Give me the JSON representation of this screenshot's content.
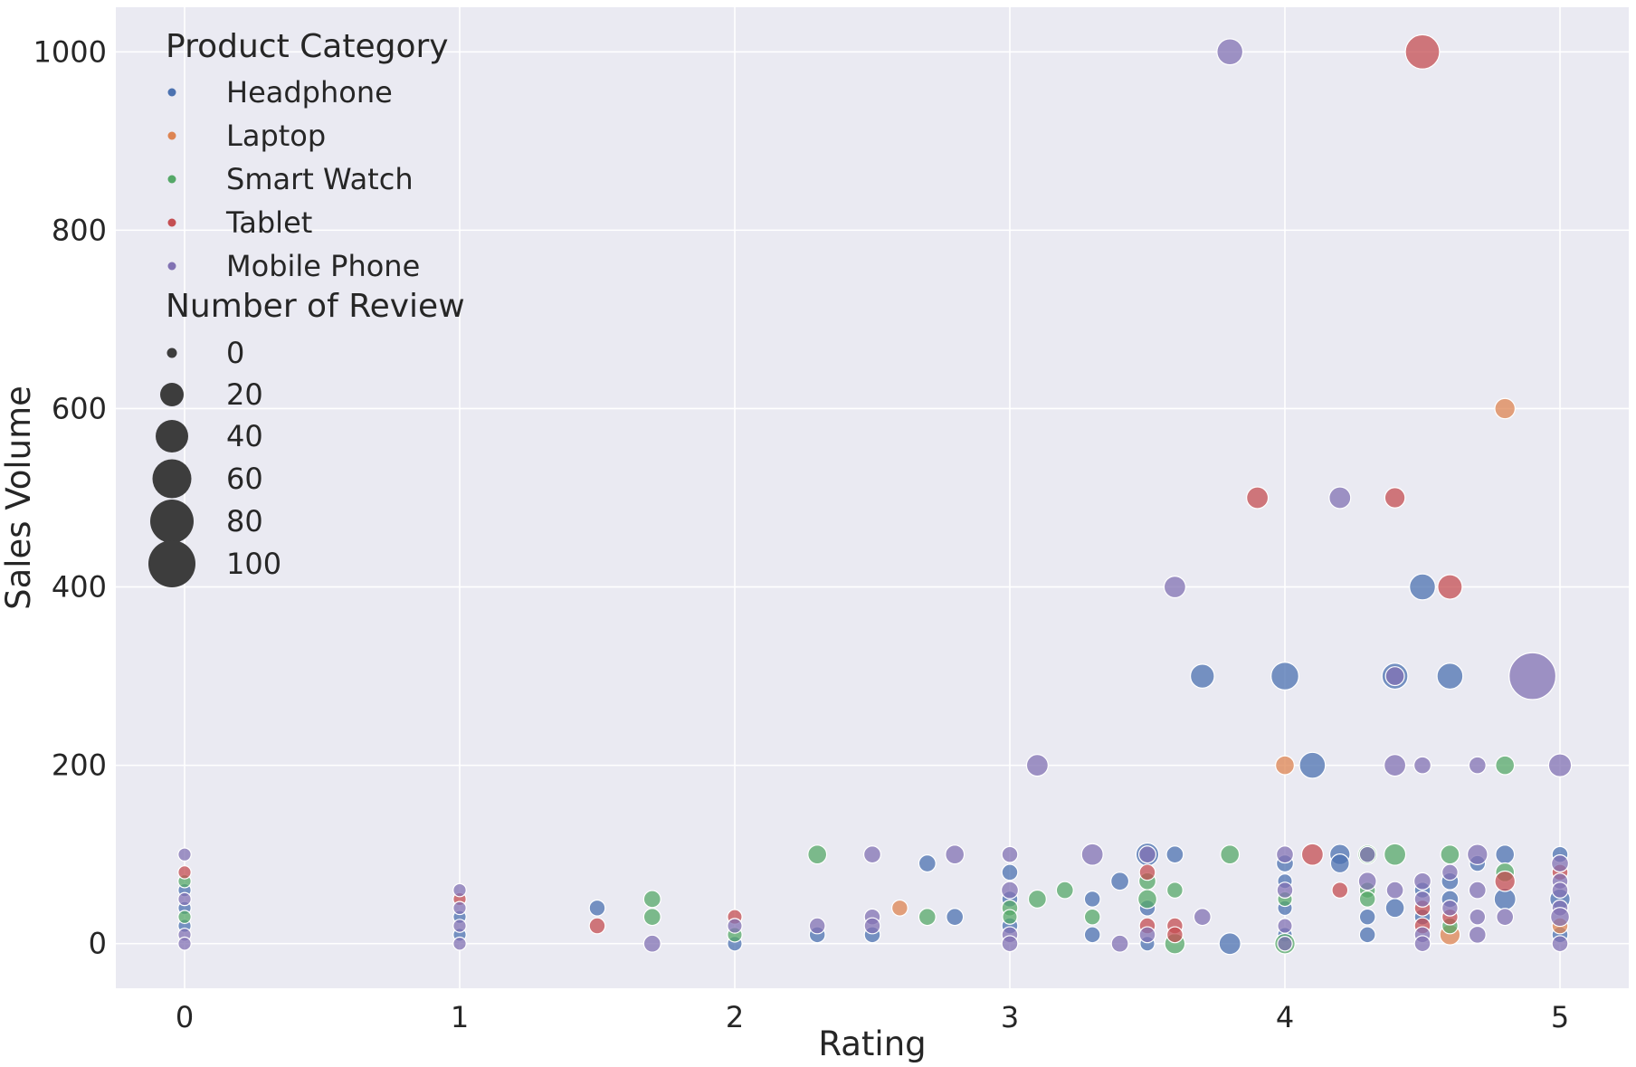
{
  "chart_data": {
    "type": "scatter",
    "xlabel": "Rating",
    "ylabel": "Sales Volume",
    "xlim": [
      -0.25,
      5.25
    ],
    "ylim": [
      -50,
      1050
    ],
    "xticks": [
      0,
      1,
      2,
      3,
      4,
      5
    ],
    "yticks": [
      0,
      200,
      400,
      600,
      800,
      1000
    ],
    "grid": true,
    "legend_position": "upper-left",
    "background": "#eaeaf2",
    "grid_color": "#ffffff",
    "hue_legend": {
      "title": "Product Category",
      "entries": [
        {
          "label": "Headphone",
          "color": "#4c72b0"
        },
        {
          "label": "Laptop",
          "color": "#dd8452"
        },
        {
          "label": "Smart Watch",
          "color": "#55a868"
        },
        {
          "label": "Tablet",
          "color": "#c44e52"
        },
        {
          "label": "Mobile Phone",
          "color": "#8172b3"
        }
      ]
    },
    "size_legend": {
      "title": "Number of Review",
      "entries": [
        {
          "label": "0",
          "value": 0
        },
        {
          "label": "20",
          "value": 20
        },
        {
          "label": "40",
          "value": 40
        },
        {
          "label": "60",
          "value": 60
        },
        {
          "label": "80",
          "value": 80
        },
        {
          "label": "100",
          "value": 100
        }
      ]
    },
    "series": [
      {
        "name": "Headphone",
        "color": "#4c72b0",
        "points": [
          {
            "x": 0,
            "y": 20,
            "r": 1
          },
          {
            "x": 0,
            "y": 40,
            "r": 1
          },
          {
            "x": 0,
            "y": 60,
            "r": 1
          },
          {
            "x": 1,
            "y": 30,
            "r": 1
          },
          {
            "x": 1,
            "y": 10,
            "r": 1
          },
          {
            "x": 1.5,
            "y": 40,
            "r": 3
          },
          {
            "x": 2,
            "y": 0,
            "r": 2
          },
          {
            "x": 2.3,
            "y": 10,
            "r": 3
          },
          {
            "x": 2.5,
            "y": 10,
            "r": 3
          },
          {
            "x": 2.7,
            "y": 90,
            "r": 4
          },
          {
            "x": 2.8,
            "y": 30,
            "r": 4
          },
          {
            "x": 3,
            "y": 80,
            "r": 3
          },
          {
            "x": 3,
            "y": 50,
            "r": 3
          },
          {
            "x": 3,
            "y": 20,
            "r": 3
          },
          {
            "x": 3.3,
            "y": 50,
            "r": 3
          },
          {
            "x": 3.3,
            "y": 10,
            "r": 3
          },
          {
            "x": 3.4,
            "y": 70,
            "r": 5
          },
          {
            "x": 3.5,
            "y": 100,
            "r": 12
          },
          {
            "x": 3.5,
            "y": 40,
            "r": 3
          },
          {
            "x": 3.5,
            "y": 0,
            "r": 2
          },
          {
            "x": 3.6,
            "y": 100,
            "r": 4
          },
          {
            "x": 3.7,
            "y": 300,
            "r": 14
          },
          {
            "x": 3.8,
            "y": 0,
            "r": 10
          },
          {
            "x": 4,
            "y": 300,
            "r": 22
          },
          {
            "x": 4,
            "y": 90,
            "r": 4
          },
          {
            "x": 4,
            "y": 70,
            "r": 2
          },
          {
            "x": 4,
            "y": 40,
            "r": 2
          },
          {
            "x": 4,
            "y": 10,
            "r": 2
          },
          {
            "x": 4.1,
            "y": 200,
            "r": 18
          },
          {
            "x": 4.2,
            "y": 100,
            "r": 8
          },
          {
            "x": 4.2,
            "y": 90,
            "r": 6
          },
          {
            "x": 4.3,
            "y": 30,
            "r": 3
          },
          {
            "x": 4.3,
            "y": 10,
            "r": 3
          },
          {
            "x": 4.4,
            "y": 300,
            "r": 18
          },
          {
            "x": 4.4,
            "y": 40,
            "r": 6
          },
          {
            "x": 4.5,
            "y": 400,
            "r": 18
          },
          {
            "x": 4.5,
            "y": 60,
            "r": 3
          },
          {
            "x": 4.5,
            "y": 30,
            "r": 3
          },
          {
            "x": 4.6,
            "y": 300,
            "r": 18
          },
          {
            "x": 4.6,
            "y": 70,
            "r": 4
          },
          {
            "x": 4.6,
            "y": 50,
            "r": 4
          },
          {
            "x": 4.7,
            "y": 90,
            "r": 3
          },
          {
            "x": 4.8,
            "y": 100,
            "r": 6
          },
          {
            "x": 4.8,
            "y": 50,
            "r": 10
          },
          {
            "x": 5,
            "y": 100,
            "r": 3
          },
          {
            "x": 5,
            "y": 50,
            "r": 8
          },
          {
            "x": 5,
            "y": 10,
            "r": 3
          }
        ]
      },
      {
        "name": "Laptop",
        "color": "#dd8452",
        "points": [
          {
            "x": 2.6,
            "y": 40,
            "r": 3
          },
          {
            "x": 4,
            "y": 200,
            "r": 6
          },
          {
            "x": 4.6,
            "y": 10,
            "r": 8
          },
          {
            "x": 4.8,
            "y": 600,
            "r": 8
          },
          {
            "x": 5,
            "y": 20,
            "r": 3
          }
        ]
      },
      {
        "name": "Smart Watch",
        "color": "#55a868",
        "points": [
          {
            "x": 0,
            "y": 70,
            "r": 1
          },
          {
            "x": 0,
            "y": 30,
            "r": 1
          },
          {
            "x": 1.7,
            "y": 50,
            "r": 4
          },
          {
            "x": 1.7,
            "y": 30,
            "r": 4
          },
          {
            "x": 2,
            "y": 10,
            "r": 2
          },
          {
            "x": 2.3,
            "y": 100,
            "r": 6
          },
          {
            "x": 2.7,
            "y": 30,
            "r": 4
          },
          {
            "x": 3,
            "y": 40,
            "r": 3
          },
          {
            "x": 3,
            "y": 30,
            "r": 2
          },
          {
            "x": 3.1,
            "y": 50,
            "r": 5
          },
          {
            "x": 3.2,
            "y": 60,
            "r": 4
          },
          {
            "x": 3.3,
            "y": 30,
            "r": 3
          },
          {
            "x": 3.5,
            "y": 70,
            "r": 4
          },
          {
            "x": 3.5,
            "y": 50,
            "r": 6
          },
          {
            "x": 3.6,
            "y": 60,
            "r": 3
          },
          {
            "x": 3.6,
            "y": 0,
            "r": 8
          },
          {
            "x": 3.8,
            "y": 100,
            "r": 6
          },
          {
            "x": 4,
            "y": 50,
            "r": 2
          },
          {
            "x": 4,
            "y": 0,
            "r": 8
          },
          {
            "x": 4.3,
            "y": 100,
            "r": 6
          },
          {
            "x": 4.3,
            "y": 60,
            "r": 3
          },
          {
            "x": 4.3,
            "y": 50,
            "r": 3
          },
          {
            "x": 4.4,
            "y": 100,
            "r": 10
          },
          {
            "x": 4.6,
            "y": 100,
            "r": 6
          },
          {
            "x": 4.6,
            "y": 20,
            "r": 3
          },
          {
            "x": 4.8,
            "y": 200,
            "r": 6
          },
          {
            "x": 4.8,
            "y": 80,
            "r": 6
          }
        ]
      },
      {
        "name": "Tablet",
        "color": "#c44e52",
        "points": [
          {
            "x": 0,
            "y": 80,
            "r": 1
          },
          {
            "x": 1,
            "y": 50,
            "r": 1
          },
          {
            "x": 1.5,
            "y": 20,
            "r": 3
          },
          {
            "x": 2,
            "y": 30,
            "r": 2
          },
          {
            "x": 3.5,
            "y": 80,
            "r": 3
          },
          {
            "x": 3.5,
            "y": 20,
            "r": 3
          },
          {
            "x": 3.6,
            "y": 20,
            "r": 3
          },
          {
            "x": 3.6,
            "y": 10,
            "r": 3
          },
          {
            "x": 3.9,
            "y": 500,
            "r": 10
          },
          {
            "x": 4.1,
            "y": 100,
            "r": 10
          },
          {
            "x": 4.2,
            "y": 60,
            "r": 3
          },
          {
            "x": 4.4,
            "y": 500,
            "r": 8
          },
          {
            "x": 4.5,
            "y": 1000,
            "r": 40
          },
          {
            "x": 4.5,
            "y": 40,
            "r": 3
          },
          {
            "x": 4.5,
            "y": 20,
            "r": 3
          },
          {
            "x": 4.6,
            "y": 400,
            "r": 15
          },
          {
            "x": 4.6,
            "y": 30,
            "r": 3
          },
          {
            "x": 4.8,
            "y": 70,
            "r": 8
          },
          {
            "x": 5,
            "y": 80,
            "r": 3
          }
        ]
      },
      {
        "name": "Mobile Phone",
        "color": "#8172b3",
        "points": [
          {
            "x": 0,
            "y": 100,
            "r": 1
          },
          {
            "x": 0,
            "y": 50,
            "r": 1
          },
          {
            "x": 0,
            "y": 10,
            "r": 1
          },
          {
            "x": 0,
            "y": 0,
            "r": 1
          },
          {
            "x": 1,
            "y": 60,
            "r": 1
          },
          {
            "x": 1,
            "y": 40,
            "r": 1
          },
          {
            "x": 1,
            "y": 20,
            "r": 1
          },
          {
            "x": 1,
            "y": 0,
            "r": 1
          },
          {
            "x": 1.7,
            "y": 0,
            "r": 4
          },
          {
            "x": 2,
            "y": 20,
            "r": 2
          },
          {
            "x": 2.3,
            "y": 20,
            "r": 3
          },
          {
            "x": 2.5,
            "y": 100,
            "r": 4
          },
          {
            "x": 2.5,
            "y": 30,
            "r": 3
          },
          {
            "x": 2.5,
            "y": 20,
            "r": 3
          },
          {
            "x": 2.8,
            "y": 100,
            "r": 6
          },
          {
            "x": 3,
            "y": 100,
            "r": 3
          },
          {
            "x": 3,
            "y": 60,
            "r": 4
          },
          {
            "x": 3,
            "y": 10,
            "r": 3
          },
          {
            "x": 3,
            "y": 0,
            "r": 3
          },
          {
            "x": 3.1,
            "y": 200,
            "r": 10
          },
          {
            "x": 3.3,
            "y": 100,
            "r": 10
          },
          {
            "x": 3.4,
            "y": 0,
            "r": 4
          },
          {
            "x": 3.5,
            "y": 100,
            "r": 4
          },
          {
            "x": 3.5,
            "y": 10,
            "r": 3
          },
          {
            "x": 3.6,
            "y": 400,
            "r": 10
          },
          {
            "x": 3.7,
            "y": 30,
            "r": 4
          },
          {
            "x": 3.8,
            "y": 1000,
            "r": 18
          },
          {
            "x": 4,
            "y": 100,
            "r": 4
          },
          {
            "x": 4,
            "y": 60,
            "r": 3
          },
          {
            "x": 4,
            "y": 20,
            "r": 2
          },
          {
            "x": 4,
            "y": 0,
            "r": 2
          },
          {
            "x": 4.2,
            "y": 500,
            "r": 10
          },
          {
            "x": 4.3,
            "y": 100,
            "r": 3
          },
          {
            "x": 4.3,
            "y": 70,
            "r": 5
          },
          {
            "x": 4.4,
            "y": 300,
            "r": 6
          },
          {
            "x": 4.4,
            "y": 200,
            "r": 10
          },
          {
            "x": 4.4,
            "y": 60,
            "r": 4
          },
          {
            "x": 4.5,
            "y": 200,
            "r": 4
          },
          {
            "x": 4.5,
            "y": 70,
            "r": 4
          },
          {
            "x": 4.5,
            "y": 50,
            "r": 3
          },
          {
            "x": 4.5,
            "y": 10,
            "r": 3
          },
          {
            "x": 4.5,
            "y": 0,
            "r": 3
          },
          {
            "x": 4.6,
            "y": 80,
            "r": 3
          },
          {
            "x": 4.6,
            "y": 40,
            "r": 3
          },
          {
            "x": 4.7,
            "y": 200,
            "r": 4
          },
          {
            "x": 4.7,
            "y": 100,
            "r": 8
          },
          {
            "x": 4.7,
            "y": 60,
            "r": 4
          },
          {
            "x": 4.7,
            "y": 30,
            "r": 3
          },
          {
            "x": 4.7,
            "y": 10,
            "r": 4
          },
          {
            "x": 4.8,
            "y": 30,
            "r": 4
          },
          {
            "x": 4.9,
            "y": 300,
            "r": 90
          },
          {
            "x": 5,
            "y": 200,
            "r": 12
          },
          {
            "x": 5,
            "y": 90,
            "r": 4
          },
          {
            "x": 5,
            "y": 70,
            "r": 3
          },
          {
            "x": 5,
            "y": 60,
            "r": 3
          },
          {
            "x": 5,
            "y": 40,
            "r": 3
          },
          {
            "x": 5,
            "y": 30,
            "r": 6
          },
          {
            "x": 5,
            "y": 0,
            "r": 3
          }
        ]
      }
    ]
  }
}
